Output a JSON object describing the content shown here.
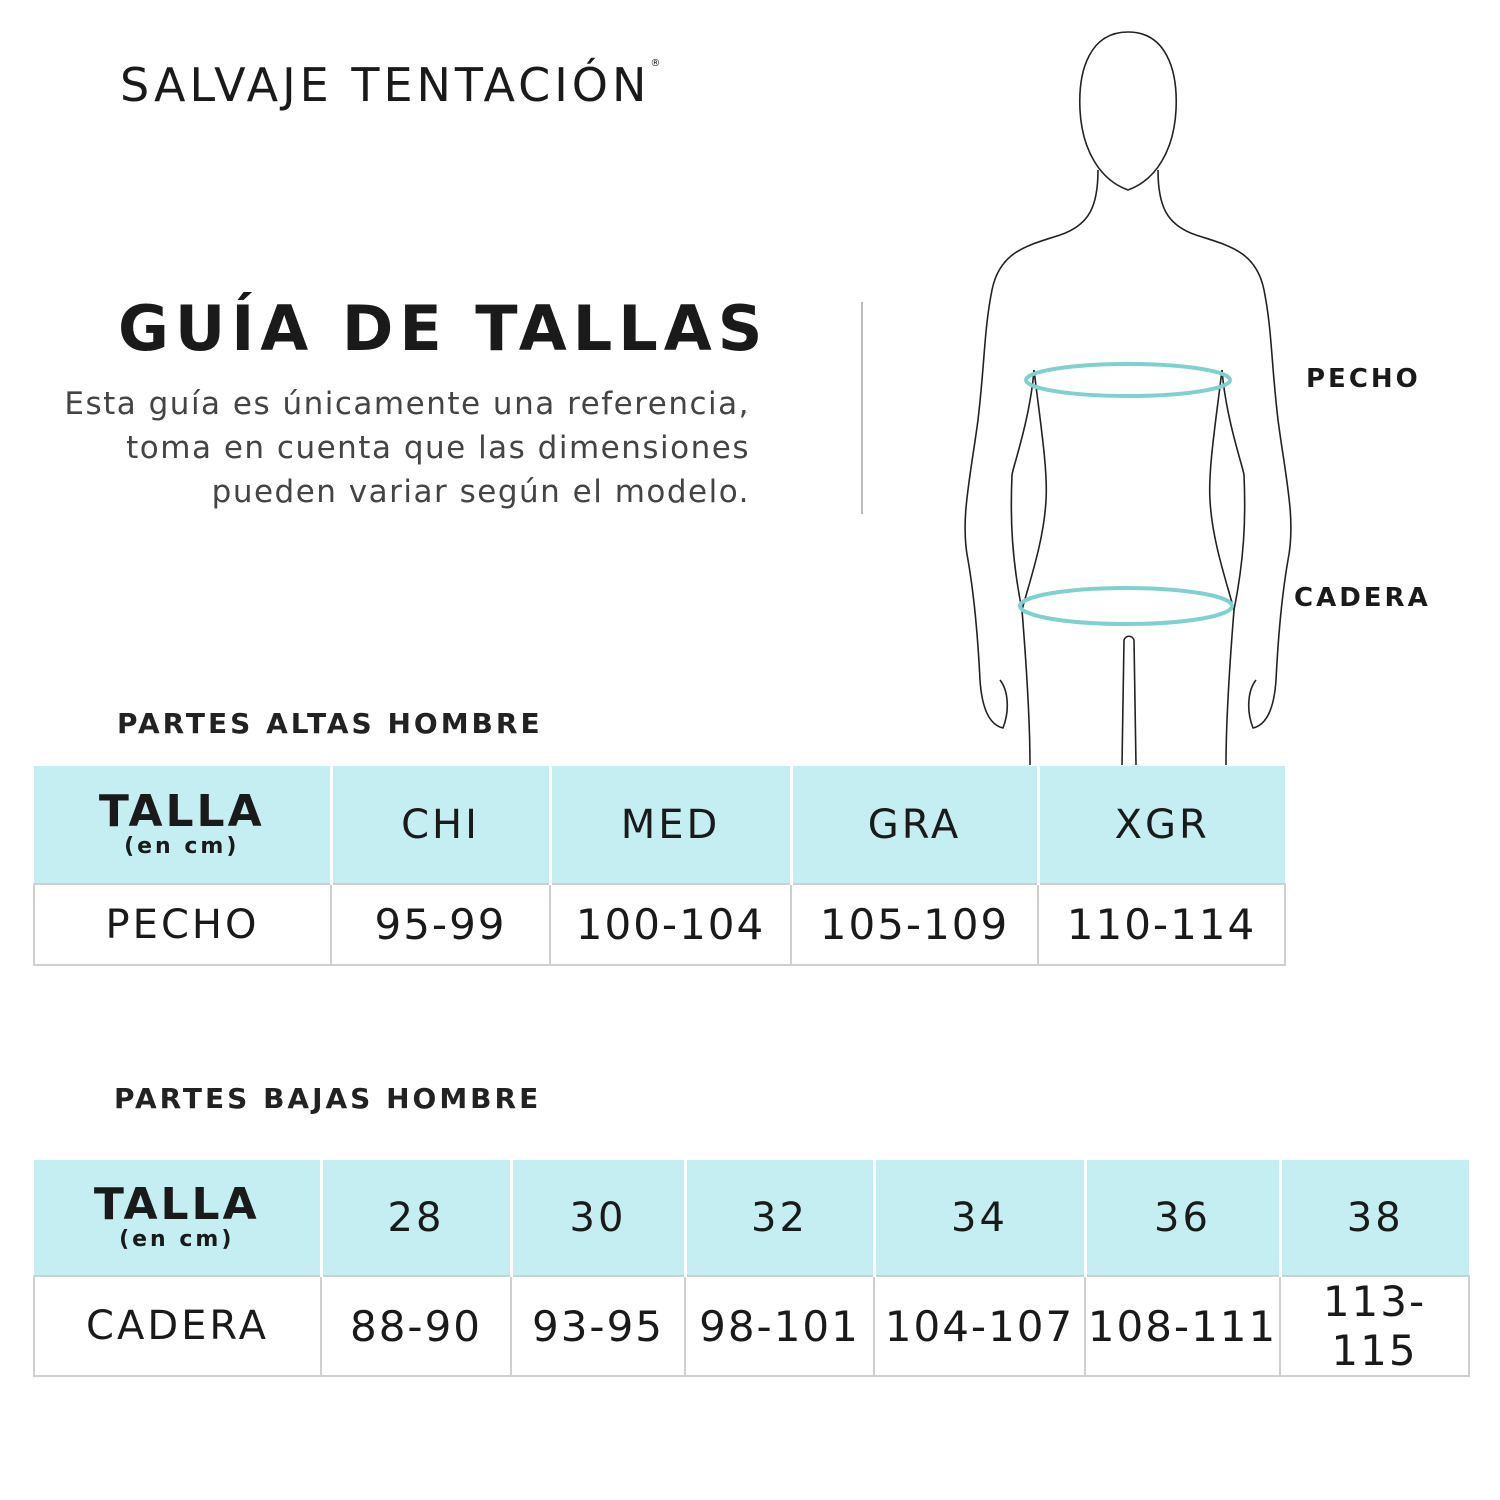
{
  "brand": {
    "name": "SALVAJE TENTACIÓN",
    "mark": "®"
  },
  "title": "GUÍA DE TALLAS",
  "description": "Esta guía es únicamente una referencia, toma en cuenta que las dimensiones pueden variar según el modelo.",
  "figure": {
    "labels": {
      "chest": "PECHO",
      "hip": "CADERA"
    },
    "ring_color": "#7fd0d0"
  },
  "colors": {
    "header_bg": "#c4eef2",
    "text": "#1a1a1a"
  },
  "tops": {
    "heading": "PARTES ALTAS HOMBRE",
    "header_label": "TALLA",
    "header_unit": "(en cm)",
    "sizes": [
      "CHI",
      "MED",
      "GRA",
      "XGR"
    ],
    "row_label": "PECHO",
    "values": [
      "95-99",
      "100-104",
      "105-109",
      "110-114"
    ]
  },
  "bottoms": {
    "heading": "PARTES BAJAS HOMBRE",
    "header_label": "TALLA",
    "header_unit": "(en cm)",
    "sizes": [
      "28",
      "30",
      "32",
      "34",
      "36",
      "38"
    ],
    "row_label": "CADERA",
    "values": [
      "88-90",
      "93-95",
      "98-101",
      "104-107",
      "108-111",
      "113-115"
    ]
  }
}
